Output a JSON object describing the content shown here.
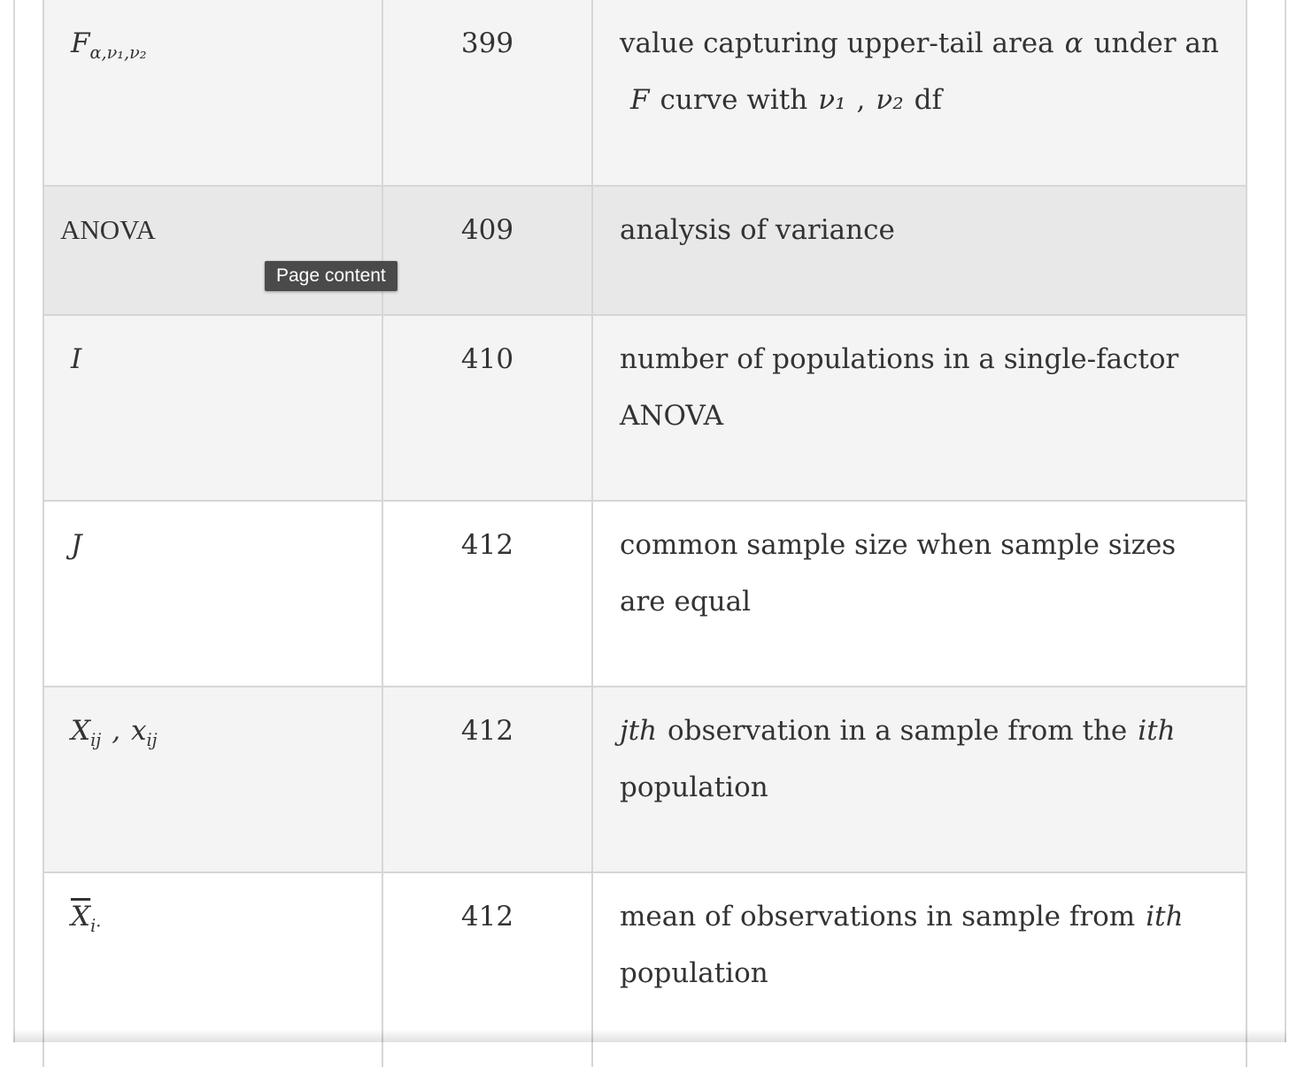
{
  "rows": [
    {
      "symbol": "F",
      "symbol_sub": "α,ν₁,ν₂",
      "page": "399",
      "desc_parts": [
        "value capturing upper-tail area",
        "α",
        "under an",
        "F",
        "curve with",
        "ν₁",
        ",",
        "ν₂",
        "df"
      ]
    },
    {
      "symbol": "ANOVA",
      "page": "409",
      "description": "analysis of variance"
    },
    {
      "symbol": "I",
      "page": "410",
      "description": "number of populations in a single-factor ANOVA"
    },
    {
      "symbol": "J",
      "page": "412",
      "description": "common sample size when sample sizes are equal"
    },
    {
      "symbol_main": "X",
      "symbol_main_sub": "ij",
      "symbol_sep": ",",
      "symbol_alt": "x",
      "symbol_alt_sub": "ij",
      "page": "412",
      "desc_lead": "jth",
      "desc_mid": "observation in a sample from the",
      "desc_trail": "ith",
      "desc_end": "population"
    },
    {
      "symbol": "X",
      "symbol_sub": "i·",
      "page": "412",
      "desc_text": "mean of observations in sample from",
      "desc_trail": "ith",
      "desc_end": "population"
    }
  ],
  "tooltip": "Page content"
}
